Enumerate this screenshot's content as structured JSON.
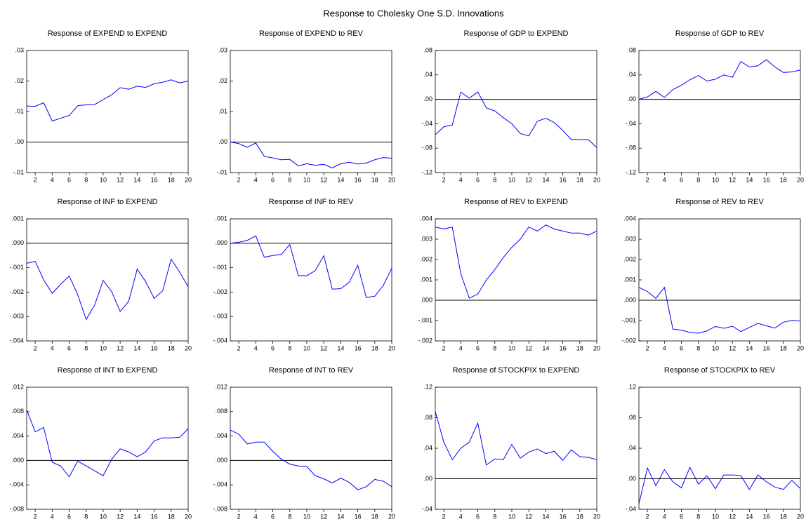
{
  "title": "Response to Cholesky One S.D. Innovations",
  "chart_data": [
    {
      "type": "line",
      "title": "Response of EXPEND to EXPEND",
      "x": [
        1,
        2,
        3,
        4,
        5,
        6,
        7,
        8,
        9,
        10,
        11,
        12,
        13,
        14,
        15,
        16,
        17,
        18,
        19,
        20
      ],
      "xlim": [
        1,
        20
      ],
      "xticks": [
        2,
        4,
        6,
        8,
        10,
        12,
        14,
        16,
        18,
        20
      ],
      "ylim": [
        -0.01,
        0.03
      ],
      "yticks": [
        {
          "value": 0.03,
          "label": ".03"
        },
        {
          "value": 0.02,
          "label": ".02"
        },
        {
          "value": 0.01,
          "label": ".01"
        },
        {
          "value": 0,
          "label": ".00"
        },
        {
          "value": -0.01,
          "label": "-.01"
        }
      ],
      "zero_line": true,
      "color": "#0000ff",
      "values": [
        0.0118,
        0.0117,
        0.0129,
        0.0069,
        0.0078,
        0.0087,
        0.0119,
        0.0122,
        0.0123,
        0.0139,
        0.0155,
        0.0178,
        0.0173,
        0.0183,
        0.0179,
        0.0191,
        0.0196,
        0.0204,
        0.0194,
        0.02
      ]
    },
    {
      "type": "line",
      "title": "Response of EXPEND to REV",
      "x": [
        1,
        2,
        3,
        4,
        5,
        6,
        7,
        8,
        9,
        10,
        11,
        12,
        13,
        14,
        15,
        16,
        17,
        18,
        19,
        20
      ],
      "xlim": [
        1,
        20
      ],
      "xticks": [
        2,
        4,
        6,
        8,
        10,
        12,
        14,
        16,
        18,
        20
      ],
      "ylim": [
        -0.01,
        0.03
      ],
      "yticks": [
        {
          "value": 0.03,
          "label": ".03"
        },
        {
          "value": 0.02,
          "label": ".02"
        },
        {
          "value": 0.01,
          "label": ".01"
        },
        {
          "value": 0,
          "label": ".00"
        },
        {
          "value": -0.01,
          "label": "-.01"
        }
      ],
      "zero_line": true,
      "color": "#0000ff",
      "values": [
        0.0,
        -0.0005,
        -0.0017,
        -0.0003,
        -0.0047,
        -0.0052,
        -0.0058,
        -0.0057,
        -0.0078,
        -0.0071,
        -0.0076,
        -0.0073,
        -0.0085,
        -0.0071,
        -0.0066,
        -0.0072,
        -0.0069,
        -0.0058,
        -0.0051,
        -0.0053
      ]
    },
    {
      "type": "line",
      "title": "Response of GDP to EXPEND",
      "x": [
        1,
        2,
        3,
        4,
        5,
        6,
        7,
        8,
        9,
        10,
        11,
        12,
        13,
        14,
        15,
        16,
        17,
        18,
        19,
        20
      ],
      "xlim": [
        1,
        20
      ],
      "xticks": [
        2,
        4,
        6,
        8,
        10,
        12,
        14,
        16,
        18,
        20
      ],
      "ylim": [
        -0.12,
        0.08
      ],
      "yticks": [
        {
          "value": 0.08,
          "label": ".08"
        },
        {
          "value": 0.04,
          "label": ".04"
        },
        {
          "value": 0,
          "label": ".00"
        },
        {
          "value": -0.04,
          "label": "-.04"
        },
        {
          "value": -0.08,
          "label": "-.08"
        },
        {
          "value": -0.12,
          "label": "-.12"
        }
      ],
      "zero_line": true,
      "color": "#0000ff",
      "values": [
        -0.058,
        -0.045,
        -0.042,
        0.012,
        0.002,
        0.012,
        -0.014,
        -0.019,
        -0.03,
        -0.04,
        -0.056,
        -0.06,
        -0.036,
        -0.031,
        -0.038,
        -0.051,
        -0.066,
        -0.066,
        -0.066,
        -0.079
      ]
    },
    {
      "type": "line",
      "title": "Response of GDP to REV",
      "x": [
        1,
        2,
        3,
        4,
        5,
        6,
        7,
        8,
        9,
        10,
        11,
        12,
        13,
        14,
        15,
        16,
        17,
        18,
        19,
        20
      ],
      "xlim": [
        1,
        20
      ],
      "xticks": [
        2,
        4,
        6,
        8,
        10,
        12,
        14,
        16,
        18,
        20
      ],
      "ylim": [
        -0.12,
        0.08
      ],
      "yticks": [
        {
          "value": 0.08,
          "label": ".08"
        },
        {
          "value": 0.04,
          "label": ".04"
        },
        {
          "value": 0,
          "label": ".00"
        },
        {
          "value": -0.04,
          "label": "-.04"
        },
        {
          "value": -0.08,
          "label": "-.08"
        },
        {
          "value": -0.12,
          "label": "-.12"
        }
      ],
      "zero_line": true,
      "color": "#0000ff",
      "values": [
        0.0,
        0.004,
        0.013,
        0.003,
        0.016,
        0.023,
        0.032,
        0.039,
        0.03,
        0.033,
        0.04,
        0.036,
        0.062,
        0.053,
        0.055,
        0.065,
        0.053,
        0.044,
        0.045,
        0.048
      ]
    },
    {
      "type": "line",
      "title": "Response of INF to EXPEND",
      "x": [
        1,
        2,
        3,
        4,
        5,
        6,
        7,
        8,
        9,
        10,
        11,
        12,
        13,
        14,
        15,
        16,
        17,
        18,
        19,
        20
      ],
      "xlim": [
        1,
        20
      ],
      "xticks": [
        2,
        4,
        6,
        8,
        10,
        12,
        14,
        16,
        18,
        20
      ],
      "ylim": [
        -0.004,
        0.001
      ],
      "yticks": [
        {
          "value": 0.001,
          "label": ".001"
        },
        {
          "value": 0,
          "label": ".000"
        },
        {
          "value": -0.001,
          "label": "-.001"
        },
        {
          "value": -0.002,
          "label": "-.002"
        },
        {
          "value": -0.003,
          "label": "-.003"
        },
        {
          "value": -0.004,
          "label": "-.004"
        }
      ],
      "zero_line": true,
      "color": "#0000ff",
      "values": [
        -0.00082,
        -0.00074,
        -0.0015,
        -0.00205,
        -0.00168,
        -0.00134,
        -0.0021,
        -0.00312,
        -0.00253,
        -0.00152,
        -0.00198,
        -0.00279,
        -0.00238,
        -0.00106,
        -0.00157,
        -0.00226,
        -0.00195,
        -0.00065,
        -0.00118,
        -0.00178
      ]
    },
    {
      "type": "line",
      "title": "Response of INF to REV",
      "x": [
        1,
        2,
        3,
        4,
        5,
        6,
        7,
        8,
        9,
        10,
        11,
        12,
        13,
        14,
        15,
        16,
        17,
        18,
        19,
        20
      ],
      "xlim": [
        1,
        20
      ],
      "xticks": [
        2,
        4,
        6,
        8,
        10,
        12,
        14,
        16,
        18,
        20
      ],
      "ylim": [
        -0.004,
        0.001
      ],
      "yticks": [
        {
          "value": 0.001,
          "label": ".001"
        },
        {
          "value": 0,
          "label": ".000"
        },
        {
          "value": -0.001,
          "label": "-.001"
        },
        {
          "value": -0.002,
          "label": "-.002"
        },
        {
          "value": -0.003,
          "label": "-.003"
        },
        {
          "value": -0.004,
          "label": "-.004"
        }
      ],
      "zero_line": true,
      "color": "#0000ff",
      "values": [
        0.0,
        4e-05,
        0.00012,
        0.0003,
        -0.00057,
        -0.0005,
        -0.00046,
        -5e-05,
        -0.00132,
        -0.00133,
        -0.00112,
        -0.00051,
        -0.00188,
        -0.00186,
        -0.0016,
        -0.0009,
        -0.00222,
        -0.00217,
        -0.00173,
        -0.00102
      ]
    },
    {
      "type": "line",
      "title": "Response of REV to EXPEND",
      "x": [
        1,
        2,
        3,
        4,
        5,
        6,
        7,
        8,
        9,
        10,
        11,
        12,
        13,
        14,
        15,
        16,
        17,
        18,
        19,
        20
      ],
      "xlim": [
        1,
        20
      ],
      "xticks": [
        2,
        4,
        6,
        8,
        10,
        12,
        14,
        16,
        18,
        20
      ],
      "ylim": [
        -0.002,
        0.004
      ],
      "yticks": [
        {
          "value": 0.004,
          "label": ".004"
        },
        {
          "value": 0.003,
          "label": ".003"
        },
        {
          "value": 0.002,
          "label": ".002"
        },
        {
          "value": 0.001,
          "label": ".001"
        },
        {
          "value": 0,
          "label": ".000"
        },
        {
          "value": -0.001,
          "label": "-.001"
        },
        {
          "value": -0.002,
          "label": "-.002"
        }
      ],
      "zero_line": true,
      "color": "#0000ff",
      "values": [
        0.0036,
        0.0035,
        0.0036,
        0.0013,
        0.0001,
        0.0003,
        0.001,
        0.0015,
        0.0021,
        0.0026,
        0.003,
        0.0036,
        0.0034,
        0.0037,
        0.0035,
        0.0034,
        0.0033,
        0.0033,
        0.0032,
        0.0034
      ]
    },
    {
      "type": "line",
      "title": "Response of REV to REV",
      "x": [
        1,
        2,
        3,
        4,
        5,
        6,
        7,
        8,
        9,
        10,
        11,
        12,
        13,
        14,
        15,
        16,
        17,
        18,
        19,
        20
      ],
      "xlim": [
        1,
        20
      ],
      "xticks": [
        2,
        4,
        6,
        8,
        10,
        12,
        14,
        16,
        18,
        20
      ],
      "ylim": [
        -0.002,
        0.004
      ],
      "yticks": [
        {
          "value": 0.004,
          "label": ".004"
        },
        {
          "value": 0.003,
          "label": ".003"
        },
        {
          "value": 0.002,
          "label": ".002"
        },
        {
          "value": 0.001,
          "label": ".001"
        },
        {
          "value": 0,
          "label": ".000"
        },
        {
          "value": -0.001,
          "label": "-.001"
        },
        {
          "value": -0.002,
          "label": "-.002"
        }
      ],
      "zero_line": true,
      "color": "#0000ff",
      "values": [
        0.00063,
        0.00043,
        9e-05,
        0.00063,
        -0.00142,
        -0.00147,
        -0.00158,
        -0.00162,
        -0.00151,
        -0.00129,
        -0.00138,
        -0.00128,
        -0.00154,
        -0.00134,
        -0.00114,
        -0.00126,
        -0.00137,
        -0.00108,
        -0.00099,
        -0.00102
      ]
    },
    {
      "type": "line",
      "title": "Response of INT to EXPEND",
      "x": [
        1,
        2,
        3,
        4,
        5,
        6,
        7,
        8,
        9,
        10,
        11,
        12,
        13,
        14,
        15,
        16,
        17,
        18,
        19,
        20
      ],
      "xlim": [
        1,
        20
      ],
      "xticks": [
        2,
        4,
        6,
        8,
        10,
        12,
        14,
        16,
        18,
        20
      ],
      "ylim": [
        -0.008,
        0.012
      ],
      "yticks": [
        {
          "value": 0.012,
          "label": ".012"
        },
        {
          "value": 0.008,
          "label": ".008"
        },
        {
          "value": 0.004,
          "label": ".004"
        },
        {
          "value": 0,
          "label": ".000"
        },
        {
          "value": -0.004,
          "label": "-.004"
        },
        {
          "value": -0.008,
          "label": "-.008"
        }
      ],
      "zero_line": true,
      "color": "#0000ff",
      "values": [
        0.0083,
        0.0047,
        0.0054,
        -0.0003,
        -0.0009,
        -0.0027,
        -0.0001,
        -0.0009,
        -0.0017,
        -0.0025,
        0.0002,
        0.0019,
        0.0014,
        0.0006,
        0.0014,
        0.0032,
        0.0037,
        0.0037,
        0.0038,
        0.0052
      ]
    },
    {
      "type": "line",
      "title": "Response of INT to REV",
      "x": [
        1,
        2,
        3,
        4,
        5,
        6,
        7,
        8,
        9,
        10,
        11,
        12,
        13,
        14,
        15,
        16,
        17,
        18,
        19,
        20
      ],
      "xlim": [
        1,
        20
      ],
      "xticks": [
        2,
        4,
        6,
        8,
        10,
        12,
        14,
        16,
        18,
        20
      ],
      "ylim": [
        -0.008,
        0.012
      ],
      "yticks": [
        {
          "value": 0.012,
          "label": ".012"
        },
        {
          "value": 0.008,
          "label": ".008"
        },
        {
          "value": 0.004,
          "label": ".004"
        },
        {
          "value": 0,
          "label": ".000"
        },
        {
          "value": -0.004,
          "label": "-.004"
        },
        {
          "value": -0.008,
          "label": "-.008"
        }
      ],
      "zero_line": true,
      "color": "#0000ff",
      "values": [
        0.005,
        0.0043,
        0.0027,
        0.003,
        0.003,
        0.0015,
        0.0002,
        -0.0006,
        -0.0009,
        -0.001,
        -0.0025,
        -0.003,
        -0.0037,
        -0.0029,
        -0.0036,
        -0.0048,
        -0.0043,
        -0.0031,
        -0.0034,
        -0.0043
      ]
    },
    {
      "type": "line",
      "title": "Response of STOCKPIX to EXPEND",
      "x": [
        1,
        2,
        3,
        4,
        5,
        6,
        7,
        8,
        9,
        10,
        11,
        12,
        13,
        14,
        15,
        16,
        17,
        18,
        19,
        20
      ],
      "xlim": [
        1,
        20
      ],
      "xticks": [
        2,
        4,
        6,
        8,
        10,
        12,
        14,
        16,
        18,
        20
      ],
      "ylim": [
        -0.04,
        0.12
      ],
      "yticks": [
        {
          "value": 0.12,
          "label": ".12"
        },
        {
          "value": 0.08,
          "label": ".08"
        },
        {
          "value": 0.04,
          "label": ".04"
        },
        {
          "value": 0,
          "label": ".00"
        },
        {
          "value": -0.04,
          "label": "-.04"
        }
      ],
      "zero_line": true,
      "color": "#0000ff",
      "values": [
        0.088,
        0.048,
        0.025,
        0.04,
        0.048,
        0.073,
        0.018,
        0.026,
        0.025,
        0.045,
        0.027,
        0.035,
        0.039,
        0.033,
        0.036,
        0.024,
        0.038,
        0.029,
        0.028,
        0.025
      ]
    },
    {
      "type": "line",
      "title": "Response of STOCKPIX to REV",
      "x": [
        1,
        2,
        3,
        4,
        5,
        6,
        7,
        8,
        9,
        10,
        11,
        12,
        13,
        14,
        15,
        16,
        17,
        18,
        19,
        20
      ],
      "xlim": [
        1,
        20
      ],
      "xticks": [
        2,
        4,
        6,
        8,
        10,
        12,
        14,
        16,
        18,
        20
      ],
      "ylim": [
        -0.04,
        0.12
      ],
      "yticks": [
        {
          "value": 0.12,
          "label": ".12"
        },
        {
          "value": 0.08,
          "label": ".08"
        },
        {
          "value": 0.04,
          "label": ".04"
        },
        {
          "value": 0,
          "label": ".00"
        },
        {
          "value": -0.04,
          "label": "-.04"
        }
      ],
      "zero_line": true,
      "color": "#0000ff",
      "values": [
        -0.033,
        0.014,
        -0.009,
        0.012,
        -0.004,
        -0.012,
        0.015,
        -0.007,
        0.004,
        -0.013,
        0.005,
        0.005,
        0.004,
        -0.014,
        0.005,
        -0.004,
        -0.011,
        -0.014,
        -0.002,
        -0.013
      ]
    }
  ]
}
